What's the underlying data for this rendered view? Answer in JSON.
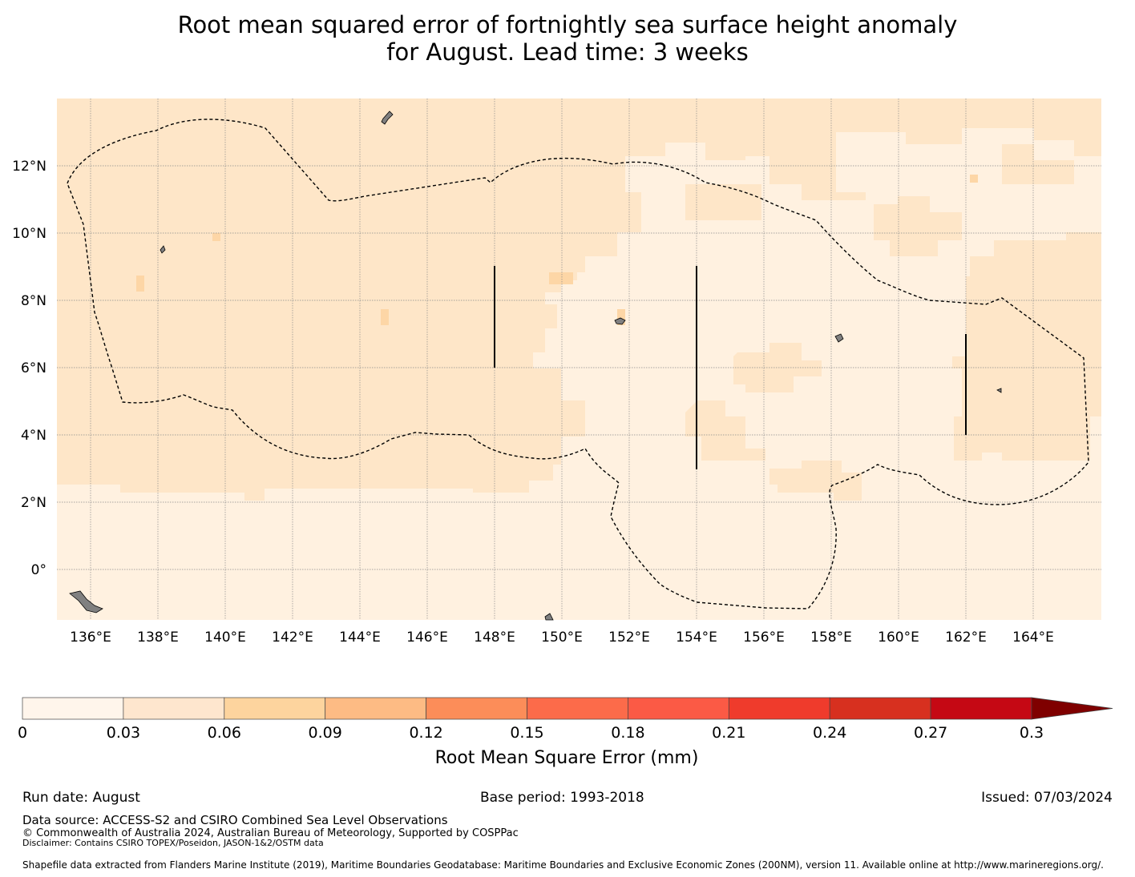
{
  "title": {
    "line1": "Root mean squared error of fortnightly sea surface height anomaly",
    "line2": "for August. Lead time: 3 weeks"
  },
  "chart_data": {
    "type": "heatmap",
    "variable": "Root mean squared error of fortnightly sea surface height anomaly",
    "lon_range_deg": [
      135,
      166
    ],
    "lat_range_deg": [
      -1.5,
      14
    ],
    "lon_ticks": [
      "136°E",
      "138°E",
      "140°E",
      "142°E",
      "144°E",
      "146°E",
      "148°E",
      "150°E",
      "152°E",
      "154°E",
      "156°E",
      "158°E",
      "160°E",
      "162°E",
      "164°E"
    ],
    "lat_ticks": [
      "12°N",
      "10°N",
      "8°N",
      "6°N",
      "4°N",
      "2°N",
      "0°"
    ],
    "grid": true,
    "regions": [
      {
        "bin": "0.03-0.06",
        "color": "#fee6c8",
        "area": "west and north, approx 135E-150E above 2.5N and north rim to 13.5N"
      },
      {
        "bin": "0-0.03",
        "color": "#fff1e0",
        "area": "south of ~2.5N and central/east region 150E-162E"
      },
      {
        "bin": "0.03-0.06",
        "color": "#fee6c8",
        "area": "east, approx 162E-166E between 3N and 9N"
      }
    ],
    "value_range_mm": [
      0,
      0.06
    ],
    "colorbar": {
      "label": "Root Mean Square Error (mm)",
      "ticks": [
        "0",
        "0.03",
        "0.06",
        "0.09",
        "0.12",
        "0.15",
        "0.18",
        "0.21",
        "0.24",
        "0.27",
        "0.3"
      ],
      "colors": [
        "#fff5eb",
        "#fee6ce",
        "#fdd49e",
        "#fdbb84",
        "#fc8d59",
        "#fc6b4a",
        "#fb5a45",
        "#ef3b2c",
        "#d7301f",
        "#c50814",
        "#b30000",
        "#7f0000"
      ],
      "extend": "max"
    },
    "meridian_segments": [
      {
        "lon": 148,
        "lat_from": 6,
        "lat_to": 9
      },
      {
        "lon": 154,
        "lat_from": 3,
        "lat_to": 9
      },
      {
        "lon": 162,
        "lat_from": 4,
        "lat_to": 7
      }
    ],
    "eez_boundary": "dashed black outline"
  },
  "footer": {
    "run_date": "Run date: August",
    "base_period": "Base period: 1993-2018",
    "issued": "Issued: 07/03/2024",
    "data_source": "Data source: ACCESS-S2 and CSIRO Combined Sea Level Observations",
    "copyright": "© Commonwealth of Australia 2024, Australian Bureau of Meteorology, Supported by COSPPac",
    "disclaimer": "Disclaimer: Contains CSIRO TOPEX/Poseidon, JASON-1&2/OSTM data",
    "shapefile": "Shapefile data extracted from Flanders Marine Institute (2019), Maritime Boundaries Geodatabase: Maritime Boundaries and Exclusive Economic Zones (200NM), version 11. Available online at http://www.marineregions.org/."
  }
}
